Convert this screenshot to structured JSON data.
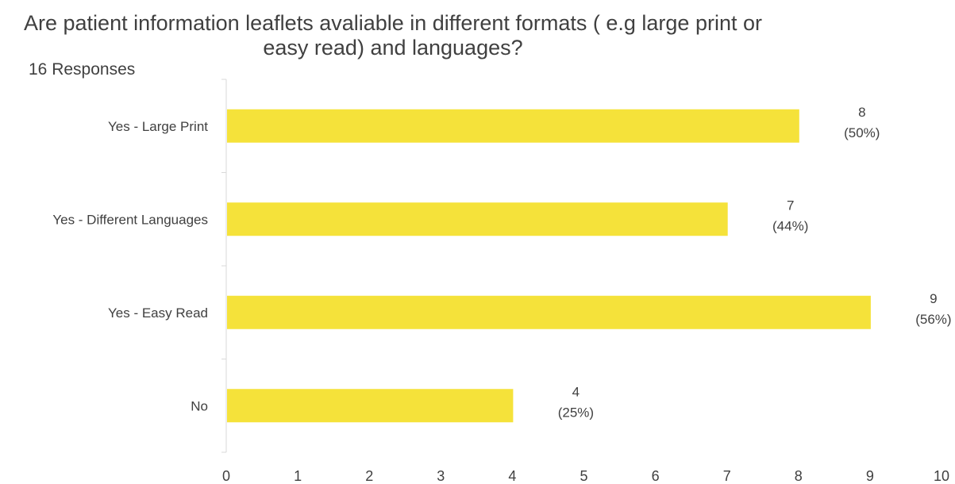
{
  "chart_data": {
    "type": "bar",
    "orientation": "horizontal",
    "title": "Are patient information leaflets avaliable in different formats ( e.g large print or easy read) and languages?",
    "subtitle": "16 Responses",
    "categories": [
      "Yes - Large Print",
      "Yes - Different Languages",
      "Yes - Easy Read",
      "No"
    ],
    "values": [
      8,
      7,
      9,
      4
    ],
    "percent_labels": [
      "(50%)",
      "(44%)",
      "(56%)",
      "(25%)"
    ],
    "xlim": [
      0,
      10
    ],
    "xticks": [
      "0",
      "1",
      "2",
      "3",
      "4",
      "5",
      "6",
      "7",
      "8",
      "9",
      "10"
    ],
    "grid": false,
    "legend": "none",
    "bar_color": "#F5E23A"
  }
}
